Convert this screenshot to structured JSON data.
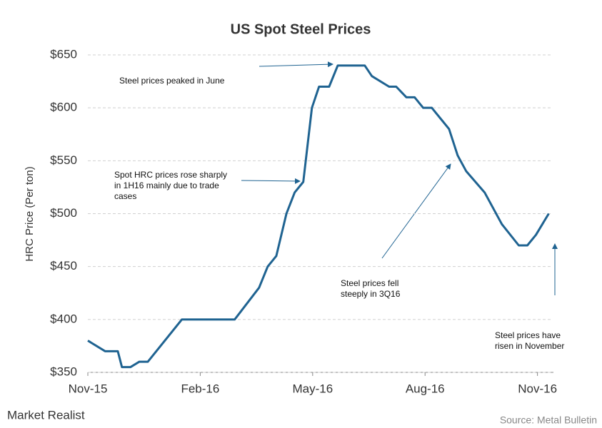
{
  "chart_data": {
    "type": "line",
    "title": "US Spot Steel Prices",
    "y_label": "HRC Price (Per ton)",
    "x": [
      0,
      0.46,
      0.8,
      0.91,
      1.14,
      1.37,
      1.6,
      2.51,
      3.92,
      4.57,
      4.8,
      5.03,
      5.3,
      5.52,
      5.75,
      5.98,
      6.17,
      6.44,
      6.67,
      7.39,
      7.58,
      8.04,
      8.23,
      8.5,
      8.72,
      8.95,
      9.18,
      9.41,
      9.64,
      9.87,
      10.1,
      10.59,
      11.05,
      11.5,
      11.73,
      11.96,
      12.3
    ],
    "series": [
      {
        "color": "#1f6391",
        "values": [
          380,
          370,
          370,
          355,
          355,
          360,
          360,
          400,
          400,
          430,
          450,
          460,
          500,
          520,
          530,
          600,
          620,
          620,
          640,
          640,
          630,
          620,
          620,
          610,
          610,
          600,
          600,
          590,
          580,
          555,
          540,
          520,
          490,
          470,
          470,
          480,
          500
        ]
      }
    ],
    "xlim": [
      0,
      12.35
    ],
    "xticks": [
      {
        "value": 0,
        "label": "Nov-15"
      },
      {
        "value": 3,
        "label": "Feb-16"
      },
      {
        "value": 6,
        "label": "May-16"
      },
      {
        "value": 9,
        "label": "Aug-16"
      },
      {
        "value": 12,
        "label": "Nov-16"
      }
    ],
    "ylim": [
      350,
      650
    ],
    "yticks": [
      {
        "value": 350,
        "label": "$350"
      },
      {
        "value": 400,
        "label": "$400"
      },
      {
        "value": 450,
        "label": "$450"
      },
      {
        "value": 500,
        "label": "$500"
      },
      {
        "value": 550,
        "label": "$550"
      },
      {
        "value": 600,
        "label": "$600"
      },
      {
        "value": 650,
        "label": "$650"
      }
    ],
    "grid": true,
    "annotations": [
      {
        "lines": [
          "Steel prices peaked in June"
        ]
      },
      {
        "lines": [
          "Spot HRC prices rose sharply",
          "in 1H16  mainly due to trade",
          "cases"
        ]
      },
      {
        "lines": [
          "Steel prices fell",
          "steeply in 3Q16"
        ]
      },
      {
        "lines": [
          "Steel prices have",
          "risen in November"
        ]
      }
    ],
    "source": "Source: Metal Bulletin"
  },
  "brand": "Market Realist"
}
